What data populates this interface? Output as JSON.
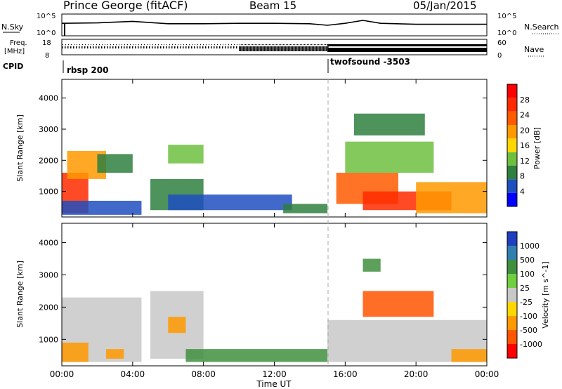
{
  "header": {
    "station": "Prince George (fitACF)",
    "beam": "Beam 15",
    "date": "05/Jan/2015"
  },
  "status_panel": {
    "nsky_label": "N.Sky",
    "nsky_ticks": [
      "10^5",
      "10^0"
    ],
    "nsearch_label": "N.Search",
    "nsearch_ticks": [
      "10^5",
      "10^0"
    ],
    "freq_label_1": "Freq.",
    "freq_label_2": "[MHz]",
    "freq_ticks": [
      "18",
      "8"
    ],
    "nave_label": "Nave",
    "nave_ticks": [
      "60",
      "0"
    ],
    "cpid_label": "CPID",
    "cpid_segments": [
      {
        "name": "rbsp 200",
        "start_hour": 0
      },
      {
        "name": "twofsound -3503",
        "start_hour": 15
      }
    ]
  },
  "x_axis": {
    "label": "Time UT",
    "tick_labels": [
      "00:00",
      "04:00",
      "08:00",
      "12:00",
      "16:00",
      "20:00",
      "00:00"
    ],
    "range_hours": [
      0,
      24
    ]
  },
  "colors": {
    "power_scale": [
      "#0000ff",
      "#1f4fbf",
      "#2f7f3f",
      "#6fbf3f",
      "#ffd700",
      "#ff9900",
      "#ff5a00",
      "#ff2a00",
      "#ff0000"
    ],
    "velocity_scale": [
      "#1f3fbf",
      "#2f7faf",
      "#3f8f3f",
      "#6fcf3f",
      "#c8c8c8",
      "#ffd700",
      "#ff9900",
      "#ff5500",
      "#ff0000"
    ],
    "cpid_marker": "#aaaaaa"
  },
  "chart_data": [
    {
      "type": "line",
      "panel": "N.Sky noise",
      "x_unit": "hours UT",
      "x": [
        0,
        2,
        4,
        6,
        8,
        10,
        12,
        14,
        15,
        16,
        17,
        18,
        20,
        22,
        24
      ],
      "y_relative": [
        0.6,
        0.62,
        0.7,
        0.58,
        0.58,
        0.6,
        0.6,
        0.58,
        0.5,
        0.6,
        0.75,
        0.6,
        0.55,
        0.55,
        0.55
      ],
      "ylim": [
        "10^0",
        "10^5"
      ]
    },
    {
      "type": "scatter",
      "panel": "Frequency / Nave",
      "segments": [
        {
          "from_hour": 0,
          "to_hour": 10,
          "style": "sparse dotted"
        },
        {
          "from_hour": 10,
          "to_hour": 15,
          "style": "dense"
        },
        {
          "from_hour": 15,
          "to_hour": 24,
          "style": "solid bands"
        }
      ],
      "freq_ylim_mhz": [
        8,
        18
      ],
      "nave_ylim": [
        0,
        60
      ]
    },
    {
      "type": "heatmap",
      "panel": "Power",
      "ylabel": "Slant Range [km]",
      "ylim": [
        180,
        4600
      ],
      "y_ticks": [
        1000,
        2000,
        3000,
        4000
      ],
      "colorbar": {
        "label": "Power [dB]",
        "ticks": [
          4,
          8,
          12,
          16,
          20,
          24,
          28
        ],
        "range": [
          0,
          32
        ]
      },
      "regions": [
        {
          "t0": 0.0,
          "t1": 1.5,
          "r0": 300,
          "r1": 1600,
          "value": 26
        },
        {
          "t0": 0.3,
          "t1": 2.5,
          "r0": 1400,
          "r1": 2300,
          "value": 18
        },
        {
          "t0": 2.0,
          "t1": 4.0,
          "r0": 1600,
          "r1": 2200,
          "value": 10
        },
        {
          "t0": 0.0,
          "t1": 4.5,
          "r0": 250,
          "r1": 700,
          "value": 6
        },
        {
          "t0": 6.0,
          "t1": 8.0,
          "r0": 1900,
          "r1": 2500,
          "value": 14
        },
        {
          "t0": 5.0,
          "t1": 8.0,
          "r0": 400,
          "r1": 1400,
          "value": 10
        },
        {
          "t0": 6.0,
          "t1": 13.0,
          "r0": 400,
          "r1": 900,
          "value": 6
        },
        {
          "t0": 12.5,
          "t1": 15.0,
          "r0": 300,
          "r1": 600,
          "value": 8
        },
        {
          "t0": 15.5,
          "t1": 19.0,
          "r0": 600,
          "r1": 1600,
          "value": 22
        },
        {
          "t0": 17.0,
          "t1": 22.0,
          "r0": 400,
          "r1": 1000,
          "value": 28
        },
        {
          "t0": 16.0,
          "t1": 21.0,
          "r0": 1600,
          "r1": 2600,
          "value": 14
        },
        {
          "t0": 16.5,
          "t1": 20.5,
          "r0": 2800,
          "r1": 3500,
          "value": 10
        },
        {
          "t0": 20.0,
          "t1": 24.0,
          "r0": 300,
          "r1": 1300,
          "value": 18
        }
      ]
    },
    {
      "type": "heatmap",
      "panel": "Velocity",
      "ylabel": "Slant Range [km]",
      "ylim": [
        180,
        4600
      ],
      "y_ticks": [
        1000,
        2000,
        3000,
        4000
      ],
      "colorbar": {
        "label": "Velocity [m s^-1]",
        "ticks": [
          1000,
          500,
          100,
          25,
          -25,
          -100,
          -500,
          -1000
        ]
      },
      "regions": [
        {
          "t0": 0.0,
          "t1": 4.5,
          "r0": 300,
          "r1": 2300,
          "value": 0
        },
        {
          "t0": 0.0,
          "t1": 1.5,
          "r0": 300,
          "r1": 900,
          "value": -100
        },
        {
          "t0": 2.5,
          "t1": 3.5,
          "r0": 400,
          "r1": 700,
          "value": -100
        },
        {
          "t0": 5.0,
          "t1": 8.0,
          "r0": 400,
          "r1": 2500,
          "value": 0
        },
        {
          "t0": 6.0,
          "t1": 7.0,
          "r0": 1200,
          "r1": 1700,
          "value": -100
        },
        {
          "t0": 7.0,
          "t1": 15.0,
          "r0": 300,
          "r1": 700,
          "value": 100
        },
        {
          "t0": 15.0,
          "t1": 24.0,
          "r0": 300,
          "r1": 1600,
          "value": 0
        },
        {
          "t0": 17.0,
          "t1": 21.0,
          "r0": 1700,
          "r1": 2500,
          "value": -500
        },
        {
          "t0": 17.0,
          "t1": 18.0,
          "r0": 3100,
          "r1": 3500,
          "value": 100
        },
        {
          "t0": 22.0,
          "t1": 24.0,
          "r0": 300,
          "r1": 700,
          "value": -100
        }
      ]
    }
  ]
}
